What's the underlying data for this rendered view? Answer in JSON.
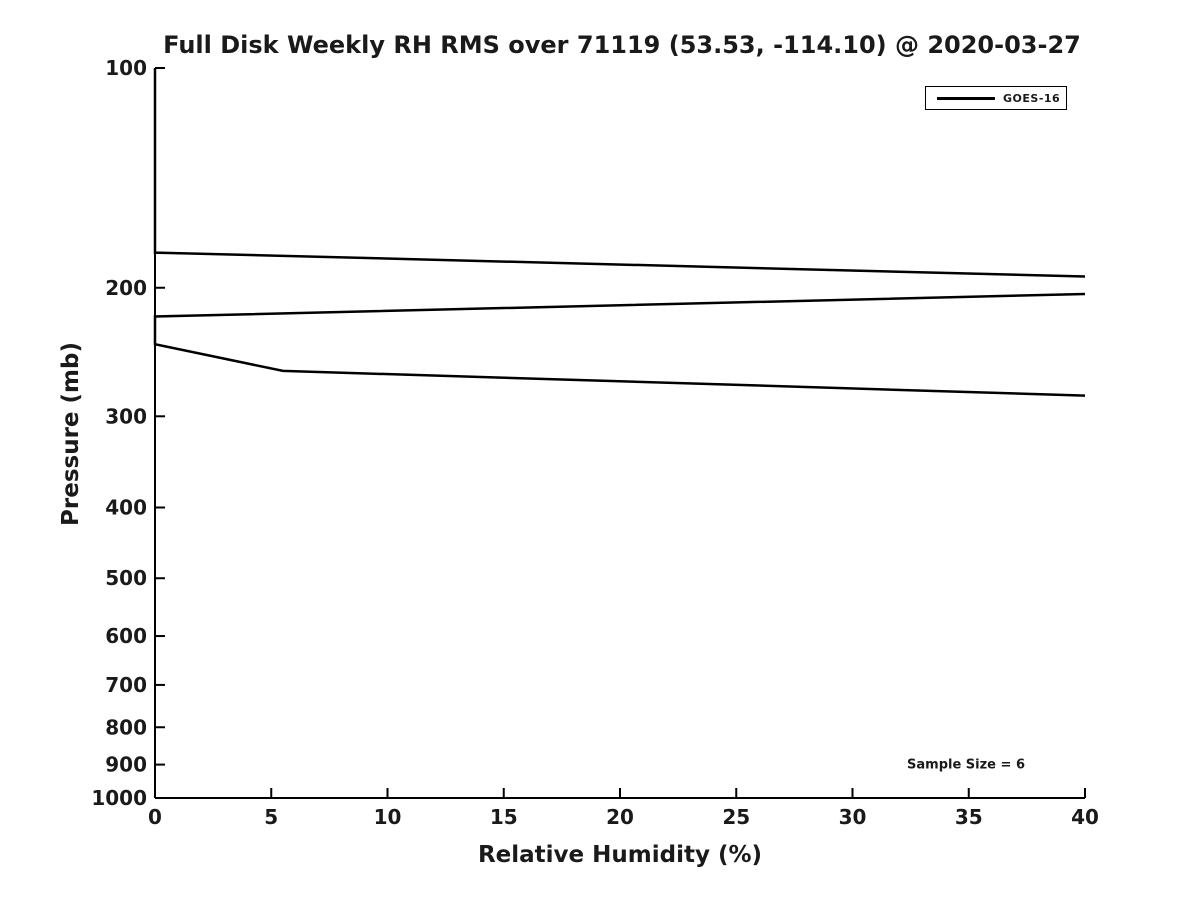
{
  "chart_data": {
    "type": "line",
    "title": "Full Disk Weekly RH RMS over 71119 (53.53, -114.10) @ 2020-03-27",
    "xlabel": "Relative Humidity (%)",
    "ylabel": "Pressure (mb)",
    "xlim": [
      0,
      40
    ],
    "xticks": [
      0,
      5,
      10,
      15,
      20,
      25,
      30,
      35,
      40
    ],
    "ylim": [
      100,
      1000
    ],
    "yticks": [
      100,
      200,
      300,
      400,
      500,
      600,
      700,
      800,
      900,
      1000
    ],
    "yscale": "log",
    "y_axis_inverted": true,
    "grid": false,
    "line_color": "#000000",
    "legend_position": "upper right",
    "series": [
      {
        "name": "GOES-16",
        "color": "#000000",
        "note": "RH RMS profile vs pressure; trace clipped at x = 40",
        "segments": [
          {
            "points": [
              [
                0,
                100
              ],
              [
                0,
                179
              ],
              [
                40,
                193
              ]
            ]
          },
          {
            "points": [
              [
                40,
                204
              ],
              [
                0,
                219
              ],
              [
                0,
                239
              ],
              [
                5.5,
                260
              ],
              [
                40,
                281
              ]
            ]
          }
        ]
      }
    ],
    "annotation": {
      "text": "Sample Size = 6"
    }
  }
}
